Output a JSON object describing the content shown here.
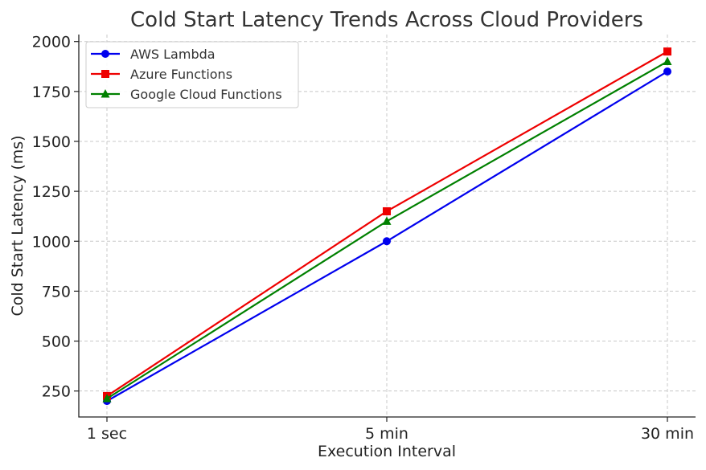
{
  "chart_data": {
    "type": "line",
    "title": "Cold Start Latency Trends Across Cloud Providers",
    "xlabel": "Execution Interval",
    "ylabel": "Cold Start Latency (ms)",
    "categories": [
      "1 sec",
      "5 min",
      "30 min"
    ],
    "ylim": [
      120,
      2035
    ],
    "yticks": [
      250,
      500,
      750,
      1000,
      1250,
      1500,
      1750,
      2000
    ],
    "grid": true,
    "legend_position": "top-left",
    "series": [
      {
        "name": "AWS Lambda",
        "color": "#0000ee",
        "marker": "circle",
        "values": [
          200,
          1000,
          1850
        ]
      },
      {
        "name": "Azure Functions",
        "color": "#ee0000",
        "marker": "square",
        "values": [
          225,
          1150,
          1950
        ]
      },
      {
        "name": "Google Cloud Functions",
        "color": "#008000",
        "marker": "triangle",
        "values": [
          212,
          1100,
          1900
        ]
      }
    ]
  }
}
